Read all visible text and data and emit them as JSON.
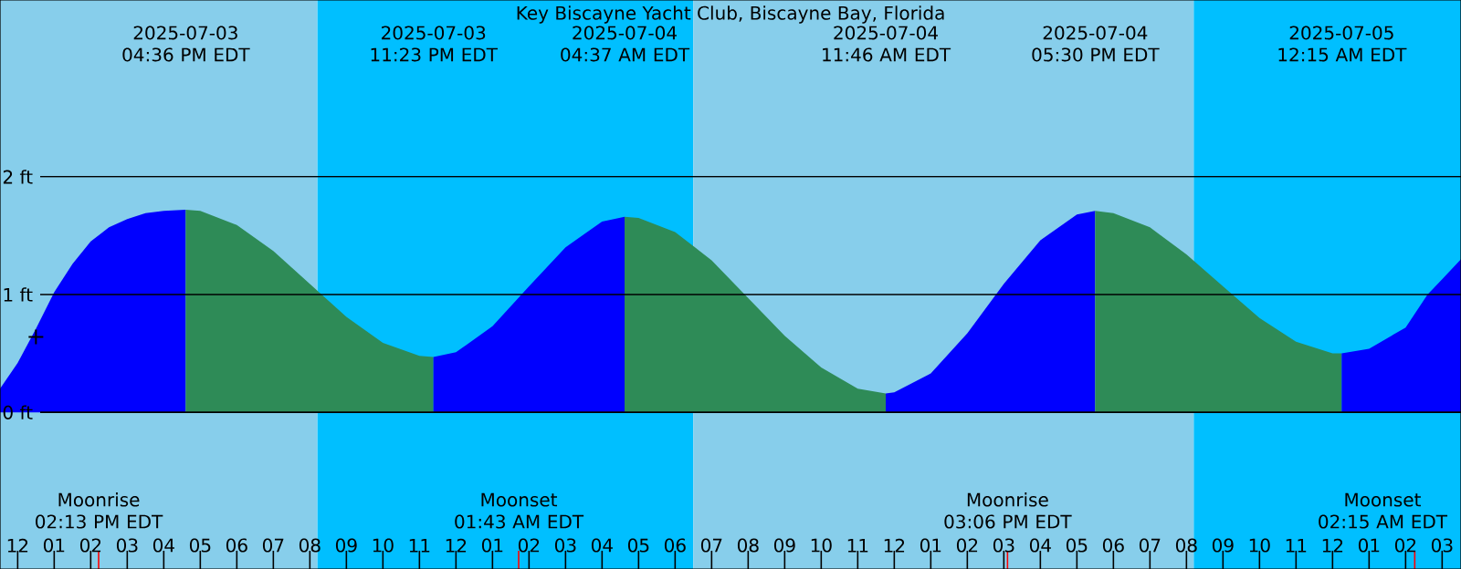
{
  "chart_data": {
    "type": "area",
    "title": "Key Biscayne Yacht Club, Biscayne Bay, Florida",
    "xlim": [
      "2025-07-03T11:31",
      "2025-07-05T03:31"
    ],
    "ylim": [
      -1.33,
      3.5
    ],
    "xticks": [
      {
        "value": "2025-07-03T12:00",
        "label": "12"
      },
      {
        "value": "2025-07-03T13:00",
        "label": "01"
      },
      {
        "value": "2025-07-03T14:00",
        "label": "02"
      },
      {
        "value": "2025-07-03T15:00",
        "label": "03"
      },
      {
        "value": "2025-07-03T16:00",
        "label": "04"
      },
      {
        "value": "2025-07-03T17:00",
        "label": "05"
      },
      {
        "value": "2025-07-03T18:00",
        "label": "06"
      },
      {
        "value": "2025-07-03T19:00",
        "label": "07"
      },
      {
        "value": "2025-07-03T20:00",
        "label": "08"
      },
      {
        "value": "2025-07-03T21:00",
        "label": "09"
      },
      {
        "value": "2025-07-03T22:00",
        "label": "10"
      },
      {
        "value": "2025-07-03T23:00",
        "label": "11"
      },
      {
        "value": "2025-07-04T00:00",
        "label": "12"
      },
      {
        "value": "2025-07-04T01:00",
        "label": "01"
      },
      {
        "value": "2025-07-04T02:00",
        "label": "02"
      },
      {
        "value": "2025-07-04T03:00",
        "label": "03"
      },
      {
        "value": "2025-07-04T04:00",
        "label": "04"
      },
      {
        "value": "2025-07-04T05:00",
        "label": "05"
      },
      {
        "value": "2025-07-04T06:00",
        "label": "06"
      },
      {
        "value": "2025-07-04T07:00",
        "label": "07"
      },
      {
        "value": "2025-07-04T08:00",
        "label": "08"
      },
      {
        "value": "2025-07-04T09:00",
        "label": "09"
      },
      {
        "value": "2025-07-04T10:00",
        "label": "10"
      },
      {
        "value": "2025-07-04T11:00",
        "label": "11"
      },
      {
        "value": "2025-07-04T12:00",
        "label": "12"
      },
      {
        "value": "2025-07-04T13:00",
        "label": "01"
      },
      {
        "value": "2025-07-04T14:00",
        "label": "02"
      },
      {
        "value": "2025-07-04T15:00",
        "label": "03"
      },
      {
        "value": "2025-07-04T16:00",
        "label": "04"
      },
      {
        "value": "2025-07-04T17:00",
        "label": "05"
      },
      {
        "value": "2025-07-04T18:00",
        "label": "06"
      },
      {
        "value": "2025-07-04T19:00",
        "label": "07"
      },
      {
        "value": "2025-07-04T20:00",
        "label": "08"
      },
      {
        "value": "2025-07-04T21:00",
        "label": "09"
      },
      {
        "value": "2025-07-04T22:00",
        "label": "10"
      },
      {
        "value": "2025-07-04T23:00",
        "label": "11"
      },
      {
        "value": "2025-07-05T00:00",
        "label": "12"
      },
      {
        "value": "2025-07-05T01:00",
        "label": "01"
      },
      {
        "value": "2025-07-05T02:00",
        "label": "02"
      },
      {
        "value": "2025-07-05T03:00",
        "label": "03"
      }
    ],
    "yticks": [
      {
        "value": 0,
        "label": "0 ft"
      },
      {
        "value": 1,
        "label": "1 ft"
      },
      {
        "value": 2,
        "label": "2 ft"
      }
    ],
    "grid": "y",
    "bands": [
      {
        "axis": "x",
        "from": "2025-07-03T11:31",
        "to": "2025-07-03T20:12",
        "color": "#87ceeb"
      },
      {
        "axis": "x",
        "from": "2025-07-03T20:12",
        "to": "2025-07-04T06:30",
        "color": "#00bfff"
      },
      {
        "axis": "x",
        "from": "2025-07-04T06:30",
        "to": "2025-07-04T20:12",
        "color": "#87ceeb"
      },
      {
        "axis": "x",
        "from": "2025-07-04T20:12",
        "to": "2025-07-05T03:31",
        "color": "#00bfff"
      }
    ],
    "ref_lines": [
      {
        "axis": "x",
        "value": "2025-07-03T14:13",
        "label": "Moonrise 02:13 PM EDT",
        "color": "#ff0000"
      },
      {
        "axis": "x",
        "value": "2025-07-04T01:43",
        "label": "Moonset 01:43 AM EDT",
        "color": "#ff0000"
      },
      {
        "axis": "x",
        "value": "2025-07-04T15:06",
        "label": "Moonrise 03:06 PM EDT",
        "color": "#ff0000"
      },
      {
        "axis": "x",
        "value": "2025-07-05T02:15",
        "label": "Moonset 02:15 AM EDT",
        "color": "#ff0000"
      }
    ],
    "series": [
      {
        "color": "#0000ff",
        "x": [
          "2025-07-03T11:31",
          "2025-07-03T12:00",
          "2025-07-03T12:30",
          "2025-07-03T13:00",
          "2025-07-03T13:30",
          "2025-07-03T14:00",
          "2025-07-03T14:30",
          "2025-07-03T15:00",
          "2025-07-03T15:30",
          "2025-07-03T16:00",
          "2025-07-03T16:36"
        ],
        "values": [
          0.2,
          0.42,
          0.71,
          1.02,
          1.26,
          1.45,
          1.57,
          1.64,
          1.69,
          1.71,
          1.72
        ]
      },
      {
        "color": "#2e8b57",
        "x": [
          "2025-07-03T16:36",
          "2025-07-03T17:00",
          "2025-07-03T18:00",
          "2025-07-03T19:00",
          "2025-07-03T20:00",
          "2025-07-03T21:00",
          "2025-07-03T22:00",
          "2025-07-03T23:00",
          "2025-07-03T23:23"
        ],
        "values": [
          1.72,
          1.71,
          1.59,
          1.37,
          1.09,
          0.81,
          0.59,
          0.48,
          0.47
        ]
      },
      {
        "color": "#0000ff",
        "x": [
          "2025-07-03T23:23",
          "2025-07-04T00:00",
          "2025-07-04T01:00",
          "2025-07-04T02:00",
          "2025-07-04T03:00",
          "2025-07-04T04:00",
          "2025-07-04T04:37"
        ],
        "values": [
          0.47,
          0.51,
          0.73,
          1.07,
          1.4,
          1.62,
          1.66
        ]
      },
      {
        "color": "#2e8b57",
        "x": [
          "2025-07-04T04:37",
          "2025-07-04T05:00",
          "2025-07-04T06:00",
          "2025-07-04T07:00",
          "2025-07-04T08:00",
          "2025-07-04T09:00",
          "2025-07-04T10:00",
          "2025-07-04T11:00",
          "2025-07-04T11:46"
        ],
        "values": [
          1.66,
          1.65,
          1.53,
          1.29,
          0.97,
          0.65,
          0.38,
          0.2,
          0.16
        ]
      },
      {
        "color": "#0000ff",
        "x": [
          "2025-07-04T11:46",
          "2025-07-04T12:00",
          "2025-07-04T13:00",
          "2025-07-04T14:00",
          "2025-07-04T15:00",
          "2025-07-04T16:00",
          "2025-07-04T17:00",
          "2025-07-04T17:30"
        ],
        "values": [
          0.16,
          0.17,
          0.33,
          0.67,
          1.09,
          1.46,
          1.68,
          1.71
        ]
      },
      {
        "color": "#2e8b57",
        "x": [
          "2025-07-04T17:30",
          "2025-07-04T18:00",
          "2025-07-04T19:00",
          "2025-07-04T20:00",
          "2025-07-04T21:00",
          "2025-07-04T22:00",
          "2025-07-04T23:00",
          "2025-07-05T00:00",
          "2025-07-05T00:15"
        ],
        "values": [
          1.71,
          1.69,
          1.57,
          1.34,
          1.07,
          0.8,
          0.6,
          0.5,
          0.5
        ]
      },
      {
        "color": "#0000ff",
        "x": [
          "2025-07-05T00:15",
          "2025-07-05T01:00",
          "2025-07-05T02:00",
          "2025-07-05T02:36",
          "2025-07-05T03:00",
          "2025-07-05T03:31"
        ],
        "values": [
          0.5,
          0.54,
          0.72,
          1.0,
          1.13,
          1.3
        ]
      },
      {
        "type": "scatter",
        "marker": "cross",
        "color": "#000000",
        "x": [
          "2025-07-03T12:30"
        ],
        "values": [
          0.64
        ]
      }
    ],
    "annotations": [
      "2025-07-03 04:36 PM EDT",
      "2025-07-03 11:23 PM EDT",
      "2025-07-04 04:37 AM EDT",
      "2025-07-04 11:46 AM EDT",
      "2025-07-04 05:30 PM EDT",
      "2025-07-05 12:15 AM EDT"
    ]
  }
}
